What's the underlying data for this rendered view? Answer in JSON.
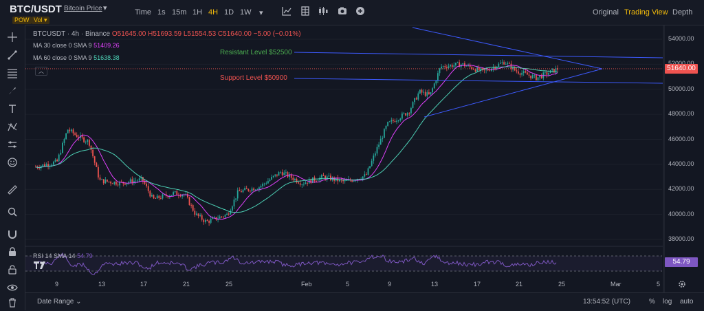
{
  "header": {
    "symbol": "BTC/USDT",
    "symbol_name": "Bitcoin Price",
    "tags": [
      "POW",
      "Vol"
    ],
    "timeframes": [
      "Time",
      "1s",
      "15m",
      "1H",
      "4H",
      "1D",
      "1W"
    ],
    "active_timeframe": "4H",
    "views": [
      "Original",
      "Trading View",
      "Depth"
    ],
    "active_view": "Trading View"
  },
  "legend": {
    "title": "BTCUSDT · 4h · Binance",
    "open": "O51645.00",
    "high": "H51693.59",
    "low": "L51554.53",
    "close": "C51640.00",
    "change": "−5.00 (−0.01%)",
    "ma30_label": "MA 30 close 0 SMA 9",
    "ma30_value": "51409.26",
    "ma60_label": "MA 60 close 0 SMA 9",
    "ma60_value": "51638.38"
  },
  "annotations": {
    "resistance": "Resistant Level $52500",
    "support": "Support Level $50900"
  },
  "price_label": "51640.00",
  "rsi": {
    "label": "RSI 14 SMA 14",
    "value": "54.79"
  },
  "y_ticks": [
    "54000.00",
    "52000.00",
    "50000.00",
    "48000.00",
    "46000.00",
    "44000.00",
    "42000.00",
    "40000.00",
    "38000.00"
  ],
  "x_ticks": [
    "9",
    "13",
    "17",
    "21",
    "25",
    "Feb",
    "5",
    "9",
    "13",
    "17",
    "21",
    "25",
    "Mar",
    "5"
  ],
  "footer": {
    "date_range": "Date Range",
    "clock": "13:54:52 (UTC)",
    "percent": "%",
    "log": "log",
    "auto": "auto"
  },
  "colors": {
    "background": "#131722",
    "up": "#26a69a",
    "down": "#ef5350",
    "ma30": "#e040fb",
    "ma60": "#4dd0b5",
    "trendline": "#3d5afe",
    "accent": "#f0b90b",
    "rsi": "#7e57c2"
  },
  "icons": [
    "crosshair-icon",
    "trendline-icon",
    "fib-icon",
    "brush-icon",
    "text-icon",
    "pattern-icon",
    "prediction-icon",
    "emoji-icon",
    "ruler-icon",
    "zoom-icon",
    "magnet-icon",
    "lock-icon",
    "eye-icon",
    "trash-icon",
    "indicators-icon",
    "candle-type-icon",
    "layout-icon",
    "screenshot-icon",
    "add-icon",
    "settings-icon"
  ],
  "chart_data": {
    "type": "candlestick",
    "timeframe": "4h",
    "x_range": [
      "Jan 6",
      "Mar 6"
    ],
    "ylim": [
      37000,
      55000
    ],
    "y_ticks": [
      38000,
      40000,
      42000,
      44000,
      46000,
      48000,
      50000,
      52000,
      54000
    ],
    "last_close": 51640.0,
    "series": [
      {
        "name": "MA 30",
        "last": 51409.26
      },
      {
        "name": "MA 60",
        "last": 51638.38
      }
    ],
    "approx_price_path": [
      {
        "x": "Jan 7",
        "y": 43800
      },
      {
        "x": "Jan 9",
        "y": 44200
      },
      {
        "x": "Jan 10",
        "y": 46800
      },
      {
        "x": "Jan 11",
        "y": 46200
      },
      {
        "x": "Jan 12",
        "y": 45800
      },
      {
        "x": "Jan 13",
        "y": 42700
      },
      {
        "x": "Jan 15",
        "y": 42500
      },
      {
        "x": "Jan 17",
        "y": 42800
      },
      {
        "x": "Jan 18",
        "y": 41200
      },
      {
        "x": "Jan 20",
        "y": 41700
      },
      {
        "x": "Jan 21",
        "y": 41600
      },
      {
        "x": "Jan 22",
        "y": 40000
      },
      {
        "x": "Jan 23",
        "y": 39400
      },
      {
        "x": "Jan 25",
        "y": 40000
      },
      {
        "x": "Jan 26",
        "y": 41800
      },
      {
        "x": "Jan 28",
        "y": 42200
      },
      {
        "x": "Jan 30",
        "y": 43400
      },
      {
        "x": "Feb 1",
        "y": 42500
      },
      {
        "x": "Feb 3",
        "y": 43000
      },
      {
        "x": "Feb 5",
        "y": 42600
      },
      {
        "x": "Feb 7",
        "y": 43100
      },
      {
        "x": "Feb 8",
        "y": 45200
      },
      {
        "x": "Feb 9",
        "y": 47200
      },
      {
        "x": "Feb 11",
        "y": 48200
      },
      {
        "x": "Feb 12",
        "y": 49800
      },
      {
        "x": "Feb 13",
        "y": 49500
      },
      {
        "x": "Feb 14",
        "y": 51800
      },
      {
        "x": "Feb 16",
        "y": 52000
      },
      {
        "x": "Feb 18",
        "y": 51400
      },
      {
        "x": "Feb 20",
        "y": 52200
      },
      {
        "x": "Feb 21",
        "y": 51500
      },
      {
        "x": "Feb 23",
        "y": 50900
      },
      {
        "x": "Feb 25",
        "y": 51640
      }
    ],
    "lines": [
      {
        "name": "Resistant Level $52500",
        "value": 52500
      },
      {
        "name": "Support Level $50900",
        "value": 50900
      }
    ],
    "rsi": {
      "label": "RSI 14 SMA 14",
      "last": 54.79,
      "bands": [
        70,
        30
      ]
    }
  }
}
